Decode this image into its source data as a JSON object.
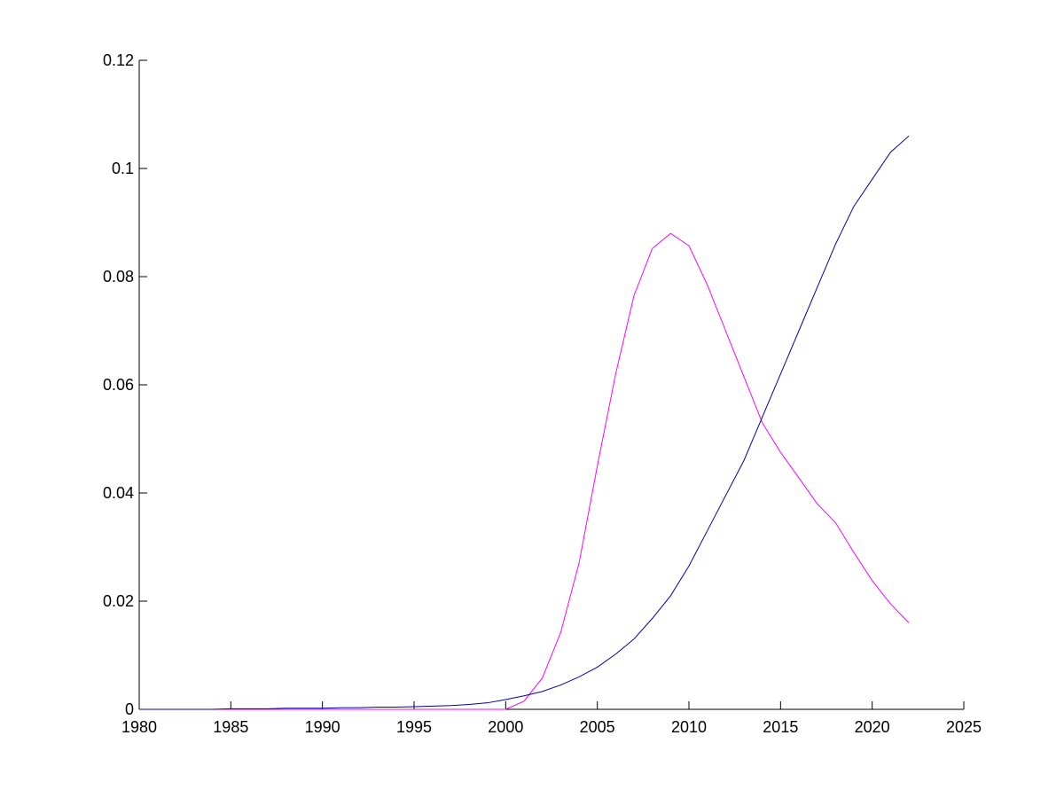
{
  "chart_data": {
    "type": "line",
    "x": [
      1980,
      1981,
      1982,
      1983,
      1984,
      1985,
      1986,
      1987,
      1988,
      1989,
      1990,
      1991,
      1992,
      1993,
      1994,
      1995,
      1996,
      1997,
      1998,
      1999,
      2000,
      2001,
      2002,
      2003,
      2004,
      2005,
      2006,
      2007,
      2008,
      2009,
      2010,
      2011,
      2012,
      2013,
      2014,
      2015,
      2016,
      2017,
      2018,
      2019,
      2020,
      2021,
      2022
    ],
    "series": [
      {
        "color": "#0000aa",
        "values": [
          0,
          0,
          0,
          0,
          0,
          0.0001,
          0.0001,
          0.0001,
          0.0002,
          0.0002,
          0.0002,
          0.0003,
          0.0003,
          0.0004,
          0.0004,
          0.0005,
          0.0006,
          0.0007,
          0.0009,
          0.0012,
          0.0018,
          0.0025,
          0.0033,
          0.0045,
          0.006,
          0.0078,
          0.0102,
          0.013,
          0.0168,
          0.021,
          0.0265,
          0.033,
          0.0395,
          0.046,
          0.054,
          0.062,
          0.07,
          0.078,
          0.086,
          0.093,
          0.098,
          0.103,
          0.106
        ]
      },
      {
        "color": "#ff00ff",
        "values": [
          0,
          0,
          0,
          0,
          0,
          0,
          0,
          0,
          0,
          0,
          0,
          0,
          0,
          0,
          0,
          0,
          0,
          0,
          0,
          0,
          0,
          0.0015,
          0.0058,
          0.0142,
          0.027,
          0.045,
          0.062,
          0.0765,
          0.0852,
          0.088,
          0.0857,
          0.0785,
          0.07,
          0.0615,
          0.053,
          0.0475,
          0.0428,
          0.038,
          0.0345,
          0.029,
          0.0238,
          0.0195,
          0.016
        ]
      }
    ],
    "xlim": [
      1980,
      2025
    ],
    "xticks": [
      1980,
      1985,
      1990,
      1995,
      2000,
      2005,
      2010,
      2015,
      2020,
      2025
    ],
    "ylim": [
      0,
      0.12
    ],
    "yticks": [
      0,
      0.02,
      0.04,
      0.06,
      0.08,
      0.1,
      0.12
    ]
  }
}
